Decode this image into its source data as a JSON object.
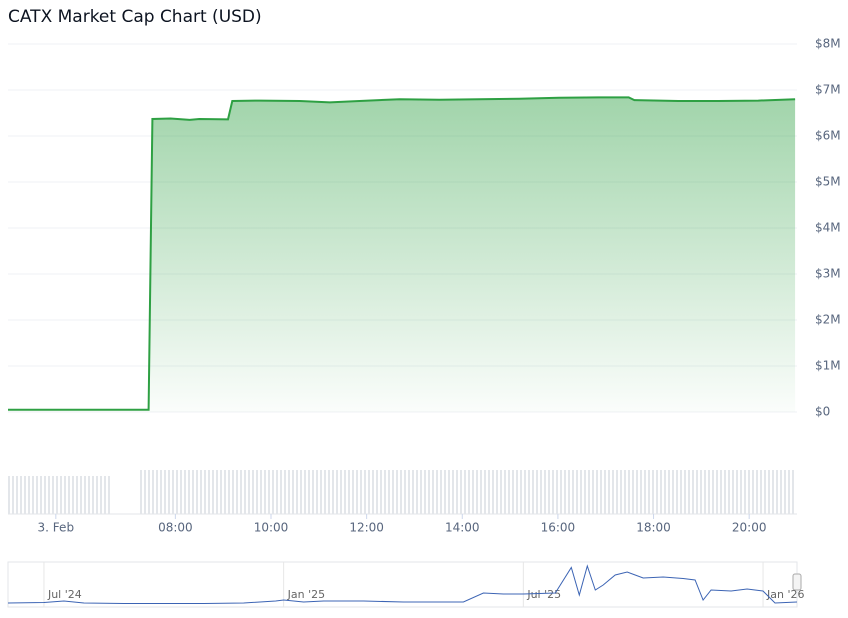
{
  "chart_data": [
    {
      "type": "area",
      "title": "CATX Market Cap Chart (USD)",
      "x": [
        4.5,
        7.44,
        7.52,
        7.9,
        8.3,
        8.5,
        9.1,
        9.19,
        9.77,
        10.6,
        11.23,
        11.85,
        12.69,
        13.52,
        14.35,
        15.19,
        16.02,
        16.85,
        17.48,
        17.6,
        18.52,
        19.35,
        20.19,
        20.96
      ],
      "series": [
        {
          "color": "#2ea043",
          "values": [
            50000,
            50000,
            6370000,
            6380000,
            6350000,
            6370000,
            6360000,
            6760000,
            6770000,
            6760000,
            6730000,
            6760000,
            6800000,
            6790000,
            6800000,
            6810000,
            6830000,
            6840000,
            6840000,
            6780000,
            6760000,
            6760000,
            6770000,
            6800000
          ]
        }
      ],
      "xlim": [
        4.5,
        21
      ],
      "xticks": [
        {
          "value": 5.5,
          "label": "3. Feb"
        },
        {
          "value": 8,
          "label": "08:00"
        },
        {
          "value": 10,
          "label": "10:00"
        },
        {
          "value": 12,
          "label": "12:00"
        },
        {
          "value": 14,
          "label": "14:00"
        },
        {
          "value": 16,
          "label": "16:00"
        },
        {
          "value": 18,
          "label": "18:00"
        },
        {
          "value": 20,
          "label": "20:00"
        }
      ],
      "ylim": [
        0,
        8000000
      ],
      "yticks": [
        {
          "value": 0,
          "label": "$0"
        },
        {
          "value": 1000000,
          "label": "$1M"
        },
        {
          "value": 2000000,
          "label": "$2M"
        },
        {
          "value": 3000000,
          "label": "$3M"
        },
        {
          "value": 4000000,
          "label": "$4M"
        },
        {
          "value": 5000000,
          "label": "$5M"
        },
        {
          "value": 6000000,
          "label": "$6M"
        },
        {
          "value": 7000000,
          "label": "$7M"
        },
        {
          "value": 8000000,
          "label": "$8M"
        }
      ],
      "grid": true
    },
    {
      "type": "line",
      "x": [
        -0.9,
        0,
        0.5,
        1,
        2,
        3,
        4,
        5,
        5.8,
        6,
        6.5,
        7,
        8,
        9,
        10.5,
        11,
        11.5,
        12,
        12.8,
        13.2,
        13.4,
        13.6,
        13.8,
        14,
        14.3,
        14.6,
        15,
        15.5,
        16,
        16.3,
        16.5,
        16.7,
        17.2,
        17.6,
        18,
        18.3,
        18.85
      ],
      "series": [
        {
          "color": "#3c64b4",
          "values": [
            400000,
            500000,
            800000,
            400000,
            300000,
            300000,
            300000,
            400000,
            800000,
            1000000,
            600000,
            800000,
            800000,
            600000,
            600000,
            2400000,
            2200000,
            2200000,
            2400000,
            7500000,
            2000000,
            7800000,
            3000000,
            4000000,
            6000000,
            6600000,
            5400000,
            5600000,
            5300000,
            5000000,
            1000000,
            3000000,
            2800000,
            3200000,
            2800000,
            400000,
            600000
          ]
        }
      ],
      "xlim": [
        -0.9,
        18.85
      ],
      "xticks": [
        {
          "value": 0,
          "label": "Jul '24"
        },
        {
          "value": 6,
          "label": "Jan '25"
        },
        {
          "value": 12,
          "label": "Jul '25"
        },
        {
          "value": 18,
          "label": "Jan '26"
        }
      ],
      "ylim": [
        0,
        8000000
      ]
    }
  ]
}
